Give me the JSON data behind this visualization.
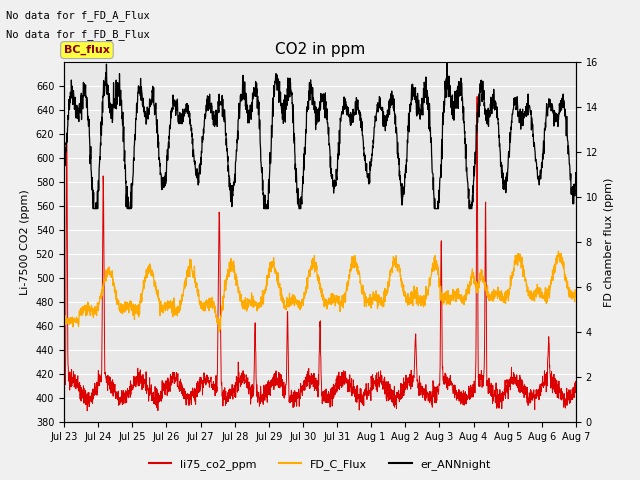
{
  "title": "CO2 in ppm",
  "ylabel_left": "Li-7500 CO2 (ppm)",
  "ylabel_right": "FD chamber flux (ppm)",
  "text_annotations": [
    "No data for f_FD_A_Flux",
    "No data for f_FD_B_Flux"
  ],
  "bc_flux_label": "BC_flux",
  "ylim_left": [
    380,
    680
  ],
  "ylim_right": [
    0,
    16
  ],
  "yticks_left": [
    380,
    400,
    420,
    440,
    460,
    480,
    500,
    520,
    540,
    560,
    580,
    600,
    620,
    640,
    660
  ],
  "yticks_right": [
    0,
    2,
    4,
    6,
    8,
    10,
    12,
    14,
    16
  ],
  "xtick_labels": [
    "Jul 23",
    "Jul 24",
    "Jul 25",
    "Jul 26",
    "Jul 27",
    "Jul 28",
    "Jul 29",
    "Jul 30",
    "Jul 31",
    "Aug 1",
    "Aug 2",
    "Aug 3",
    "Aug 4",
    "Aug 5",
    "Aug 6",
    "Aug 7"
  ],
  "legend_labels": [
    "li75_co2_ppm",
    "FD_C_Flux",
    "er_ANNnight"
  ],
  "legend_colors": [
    "#dd0000",
    "#ffaa00",
    "#000000"
  ],
  "line_colors": {
    "li75": "#dd0000",
    "fd_c": "#ffaa00",
    "er_ann": "#000000"
  },
  "background_color": "#e8e8e8",
  "grid_color": "#ffffff",
  "fig_bg": "#f0f0f0"
}
